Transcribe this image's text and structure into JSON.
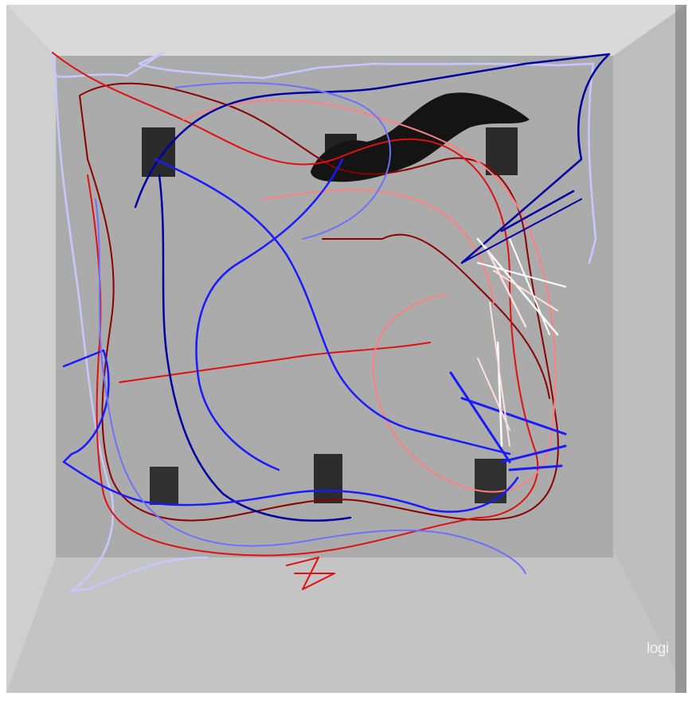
{
  "scene": {
    "description_hidden": true,
    "watermark_text": "logi"
  },
  "colors": {
    "arena_floor": "#a9a9a9",
    "arena_wall_light": "#d4d4d4",
    "arena_wall_dark": "#b8b8b8",
    "object_dark": "#1e1e1e",
    "track_dark_red": "#8b0000",
    "track_red": "#e01010",
    "track_light_red": "#ff8080",
    "track_pale": "#ffe0e0",
    "track_dark_blue": "#0000a0",
    "track_blue": "#1a1aff",
    "track_light_blue": "#7070ff",
    "track_pale_blue": "#c8c8ff"
  }
}
